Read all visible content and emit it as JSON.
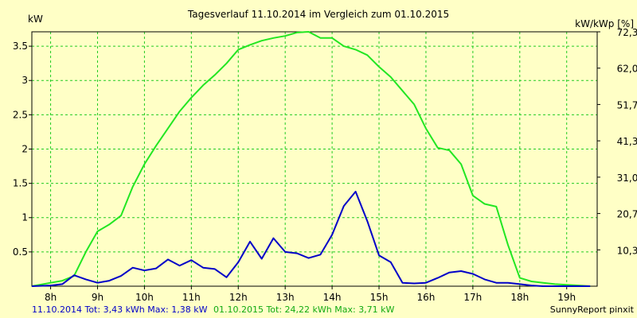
{
  "chart_data": {
    "type": "line",
    "title": "Tagesverlauf 11.10.2014 im Vergleich zum 01.10.2015",
    "ylabel_left": "kW",
    "ylabel_right": "kW/kWp [%]",
    "ylim": [
      0,
      3.71
    ],
    "grid": true,
    "y_ticks_left": [
      0.5,
      1,
      1.5,
      2,
      2.5,
      3,
      3.5
    ],
    "y_tick_labels_left": [
      "0.5",
      "1",
      "1.5",
      "2",
      "2.5",
      "3",
      "3.5"
    ],
    "y_ticks_right_values": [
      0.53,
      1.06,
      1.59,
      2.12,
      2.65,
      3.18,
      3.71
    ],
    "y_tick_labels_right": [
      "10,3",
      "20,7",
      "31,0",
      "41,3",
      "51,7",
      "62,0",
      "72,3"
    ],
    "x_range": [
      7.6,
      19.65
    ],
    "x_ticks": [
      8,
      9,
      10,
      11,
      12,
      13,
      14,
      15,
      16,
      17,
      18,
      19
    ],
    "x_tick_labels": [
      "8h",
      "9h",
      "10h",
      "11h",
      "12h",
      "13h",
      "14h",
      "15h",
      "16h",
      "17h",
      "18h",
      "19h"
    ],
    "series": [
      {
        "name": "11.10.2014",
        "color": "#0000c8",
        "x": [
          7.6,
          8.0,
          8.25,
          8.5,
          8.75,
          9.0,
          9.25,
          9.5,
          9.75,
          10.0,
          10.25,
          10.5,
          10.75,
          11.0,
          11.25,
          11.5,
          11.75,
          12.0,
          12.25,
          12.5,
          12.75,
          13.0,
          13.25,
          13.5,
          13.75,
          14.0,
          14.25,
          14.5,
          14.75,
          15.0,
          15.25,
          15.5,
          15.75,
          16.0,
          16.25,
          16.5,
          16.75,
          17.0,
          17.25,
          17.5,
          17.75,
          18.0,
          18.25,
          18.5,
          18.75,
          19.0,
          19.25,
          19.5
        ],
        "y": [
          0.0,
          0.01,
          0.03,
          0.16,
          0.1,
          0.05,
          0.08,
          0.15,
          0.27,
          0.23,
          0.26,
          0.39,
          0.3,
          0.38,
          0.27,
          0.25,
          0.13,
          0.35,
          0.65,
          0.4,
          0.7,
          0.5,
          0.48,
          0.41,
          0.46,
          0.75,
          1.17,
          1.38,
          0.95,
          0.45,
          0.35,
          0.05,
          0.04,
          0.05,
          0.12,
          0.2,
          0.22,
          0.18,
          0.1,
          0.05,
          0.05,
          0.03,
          0.01,
          0.0,
          0.0,
          0.0,
          0.0,
          0.0
        ]
      },
      {
        "name": "01.10.2015",
        "color": "#22e622",
        "x": [
          7.6,
          8.0,
          8.25,
          8.5,
          8.75,
          9.0,
          9.25,
          9.5,
          9.75,
          10.0,
          10.25,
          10.5,
          10.75,
          11.0,
          11.25,
          11.5,
          11.75,
          12.0,
          12.25,
          12.5,
          12.75,
          13.0,
          13.25,
          13.5,
          13.75,
          14.0,
          14.25,
          14.5,
          14.75,
          15.0,
          15.25,
          15.5,
          15.75,
          16.0,
          16.25,
          16.5,
          16.75,
          17.0,
          17.25,
          17.5,
          17.75,
          18.0,
          18.25,
          18.5,
          18.75,
          19.0,
          19.25,
          19.5
        ],
        "y": [
          0.0,
          0.05,
          0.08,
          0.15,
          0.5,
          0.8,
          0.9,
          1.03,
          1.45,
          1.78,
          2.05,
          2.3,
          2.55,
          2.75,
          2.93,
          3.08,
          3.25,
          3.45,
          3.52,
          3.58,
          3.62,
          3.65,
          3.7,
          3.71,
          3.62,
          3.62,
          3.5,
          3.45,
          3.37,
          3.2,
          3.05,
          2.85,
          2.65,
          2.3,
          2.02,
          1.98,
          1.78,
          1.32,
          1.2,
          1.16,
          0.6,
          0.12,
          0.07,
          0.05,
          0.03,
          0.02,
          0.01,
          0.0
        ]
      }
    ]
  },
  "footer": {
    "left_text_blue": "11.10.2014 Tot: 3,43 kWh Max: 1,38 kW",
    "left_text_green": "01.10.2015 Tot: 24,22 kWh Max: 3,71 kW",
    "right_text": "SunnyReport pinxit"
  },
  "colors": {
    "background": "#ffffc6",
    "grid": "#22cc22",
    "footer_blue": "#0000c8",
    "footer_green": "#11aa11"
  }
}
